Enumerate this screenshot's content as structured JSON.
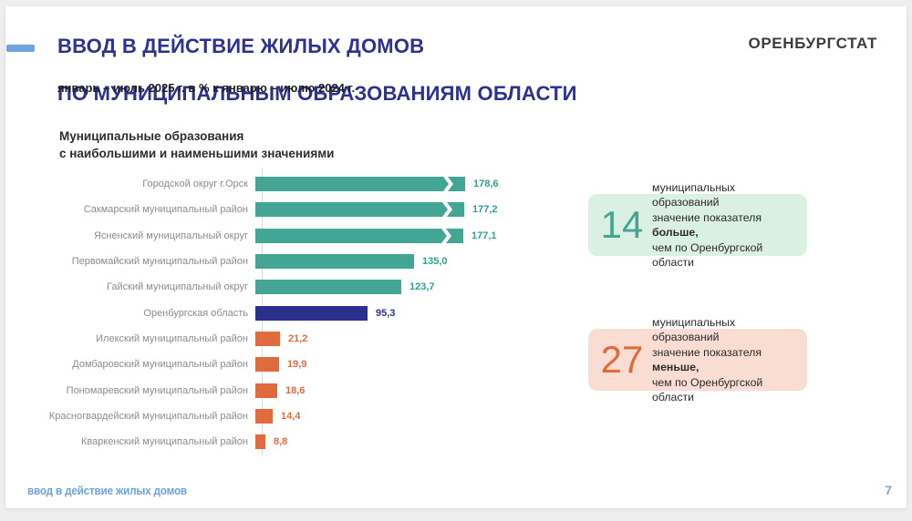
{
  "slide": {
    "title_line1": "ВВОД В ДЕЙСТВИЕ ЖИЛЫХ ДОМОВ",
    "title_line2": "ПО МУНИЦИПАЛЬНЫМ ОБРАЗОВАНИЯМ ОБЛАСТИ",
    "subtitle": "январь – июль 2025 г. в % к январю – июлю 2024 г.",
    "org": "ОРЕНБУРГСТАТ",
    "footer_left": "ввод в действие жилых домов",
    "page_number": "7"
  },
  "colors": {
    "accent_blue": "#6fa3db",
    "title_navy": "#2e3192",
    "teal": "#43a695",
    "navy": "#2d2f8f",
    "orange": "#e06b3e",
    "green_box_bg": "#d9f0e3",
    "pink_box_bg": "#f9ddd3"
  },
  "chart_data": {
    "type": "bar",
    "orientation": "horizontal",
    "title": "Муниципальные образования\nс наибольшими и наименьшими значениями",
    "xlabel": "",
    "ylabel": "",
    "grid": false,
    "legend": false,
    "categories": [
      "Городской округ г.Орск",
      "Сакмарский муниципальный район",
      "Ясненский муниципальный округ",
      "Первомайский муниципальный район",
      "Гайский муниципальный округ",
      "Оренбургская область",
      "Илекский муниципальный район",
      "Домбаровский муниципальный район",
      "Пономаревский муниципальный район",
      "Красногвардейский муниципальный район",
      "Кваркенский муниципальный район"
    ],
    "values": [
      178.6,
      177.2,
      177.1,
      135.0,
      123.7,
      95.3,
      21.2,
      19.9,
      18.6,
      14.4,
      8.8
    ],
    "value_labels": [
      "178,6",
      "177,2",
      "177,1",
      "135,0",
      "123,7",
      "95,3",
      "21,2",
      "19,9",
      "18,6",
      "14,4",
      "8,8"
    ],
    "bar_colors": [
      "#43a695",
      "#43a695",
      "#43a695",
      "#43a695",
      "#43a695",
      "#2d2f8f",
      "#e06b3e",
      "#e06b3e",
      "#e06b3e",
      "#e06b3e",
      "#e06b3e"
    ],
    "value_colors": [
      "#2fa191",
      "#2fa191",
      "#2fa191",
      "#2fa191",
      "#2fa191",
      "#2e3192",
      "#e06b3e",
      "#e06b3e",
      "#e06b3e",
      "#e06b3e",
      "#e06b3e"
    ],
    "axis_break": [
      true,
      true,
      true,
      false,
      false,
      false,
      false,
      false,
      false,
      false,
      false
    ]
  },
  "callouts": [
    {
      "number": "14",
      "line1": "муниципальных образований",
      "line2_prefix": "значение показателя ",
      "line2_bold": "больше,",
      "line3": "чем по Оренбургской области",
      "bg": "#d9f0e3",
      "number_color": "#43a695"
    },
    {
      "number": "27",
      "line1": "муниципальных образований",
      "line2_prefix": "значение показателя ",
      "line2_bold": "меньше,",
      "line3": "чем по Оренбургской области",
      "bg": "#f9ddd3",
      "number_color": "#e06b3e"
    }
  ]
}
